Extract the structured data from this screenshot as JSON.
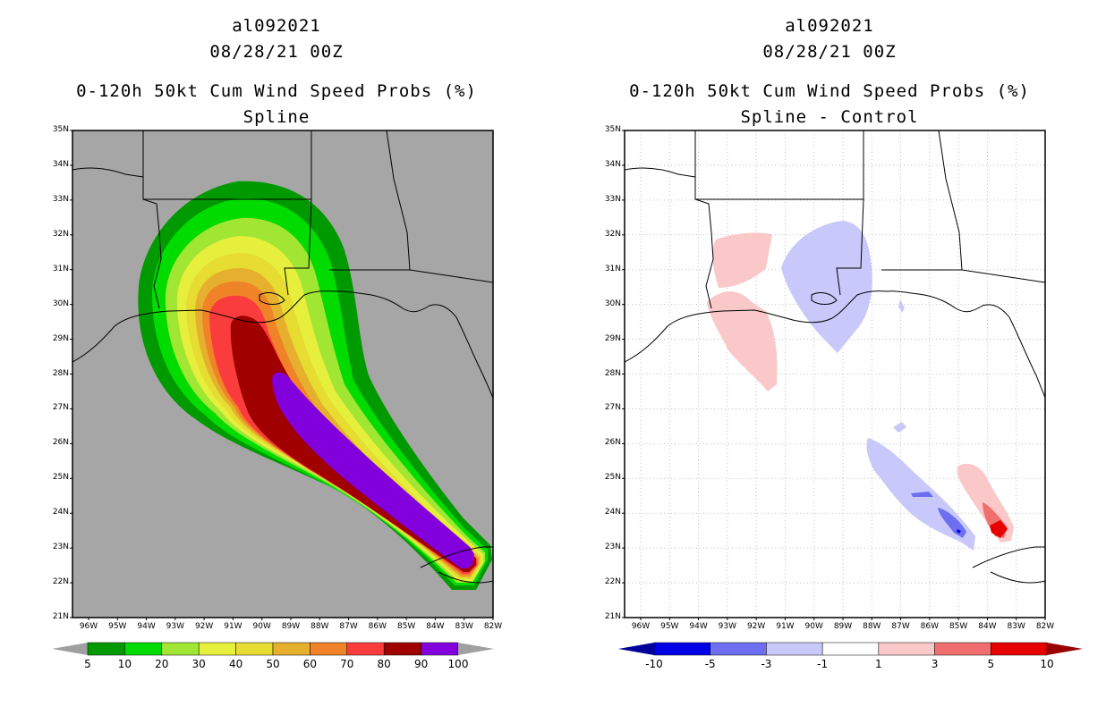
{
  "panels": [
    {
      "line1": "al092021",
      "line2": "08/28/21 00Z",
      "line3": "0-120h 50kt Cum Wind Speed Probs (%)",
      "line4": "Spline",
      "lat_labels": [
        "35N",
        "34N",
        "33N",
        "32N",
        "31N",
        "30N",
        "29N",
        "28N",
        "27N",
        "26N",
        "25N",
        "24N",
        "23N",
        "22N",
        "21N"
      ],
      "lon_labels": [
        "96W",
        "95W",
        "94W",
        "93W",
        "92W",
        "91W",
        "90W",
        "89W",
        "88W",
        "87W",
        "86W",
        "85W",
        "84W",
        "83W",
        "82W"
      ],
      "colorbar": {
        "labels": [
          "5",
          "10",
          "20",
          "30",
          "40",
          "50",
          "60",
          "70",
          "80",
          "90",
          "100"
        ],
        "colors": [
          "#009a00",
          "#00dc00",
          "#a0e632",
          "#e6f03c",
          "#e6dc32",
          "#e6af2d",
          "#f08228",
          "#fa3c3c",
          "#a00000",
          "#8200dc"
        ],
        "end_low": "#a0a0a0",
        "end_high": "#a0a0a0"
      }
    },
    {
      "line1": "al092021",
      "line2": "08/28/21 00Z",
      "line3": "0-120h 50kt Cum Wind Speed Probs (%)",
      "line4": "Spline - Control",
      "lat_labels": [
        "35N",
        "34N",
        "33N",
        "32N",
        "31N",
        "30N",
        "29N",
        "28N",
        "27N",
        "26N",
        "25N",
        "24N",
        "23N",
        "22N",
        "21N"
      ],
      "lon_labels": [
        "96W",
        "95W",
        "94W",
        "93W",
        "92W",
        "91W",
        "90W",
        "89W",
        "88W",
        "87W",
        "86W",
        "85W",
        "84W",
        "83W",
        "82W"
      ],
      "colorbar": {
        "labels": [
          "-10",
          "-5",
          "-3",
          "-1",
          "1",
          "3",
          "5",
          "10"
        ],
        "colors": [
          "#0000e6",
          "#6e6ef0",
          "#c8c8fa",
          "#ffffff",
          "#fac8c8",
          "#f06e6e",
          "#e60000"
        ],
        "end_low": "#00009b",
        "end_high": "#9b0000"
      }
    }
  ]
}
